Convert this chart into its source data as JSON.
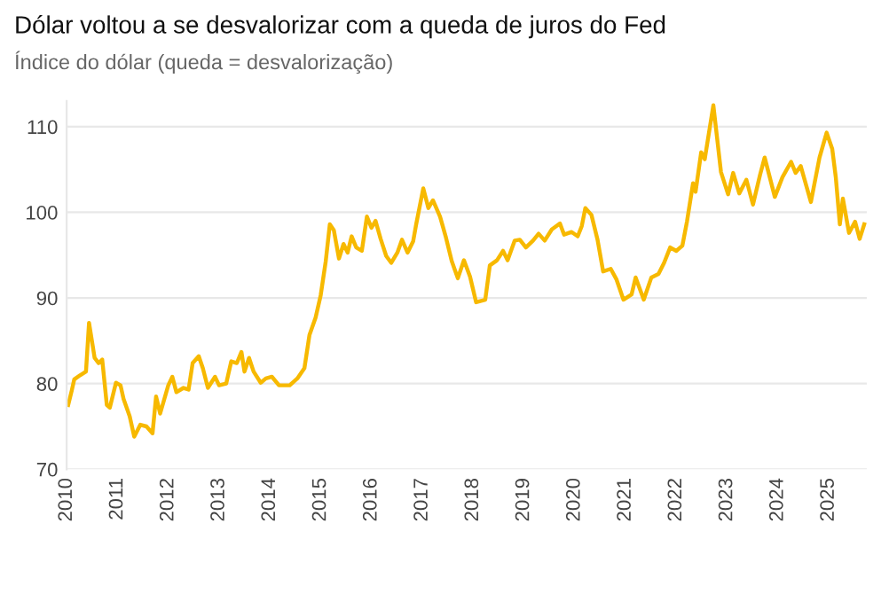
{
  "chart_data": {
    "type": "line",
    "title": "Dólar voltou a se desvalorizar com a queda de juros do Fed",
    "subtitle": "Índice do dólar (queda = desvalorização)",
    "x": [
      2010.03,
      2010.1,
      2010.15,
      2010.27,
      2010.38,
      2010.44,
      2010.55,
      2010.63,
      2010.7,
      2010.79,
      2010.85,
      2010.97,
      2011.06,
      2011.12,
      2011.24,
      2011.33,
      2011.45,
      2011.57,
      2011.69,
      2011.76,
      2011.84,
      2012.0,
      2012.08,
      2012.16,
      2012.3,
      2012.4,
      2012.48,
      2012.6,
      2012.68,
      2012.78,
      2012.92,
      2013.0,
      2013.14,
      2013.24,
      2013.35,
      2013.44,
      2013.5,
      2013.59,
      2013.68,
      2013.82,
      2013.92,
      2014.04,
      2014.18,
      2014.39,
      2014.54,
      2014.68,
      2014.78,
      2014.9,
      2015.0,
      2015.1,
      2015.18,
      2015.26,
      2015.36,
      2015.45,
      2015.53,
      2015.61,
      2015.7,
      2015.81,
      2015.91,
      2016.0,
      2016.08,
      2016.18,
      2016.29,
      2016.39,
      2016.51,
      2016.6,
      2016.71,
      2016.82,
      2016.88,
      2017.02,
      2017.12,
      2017.21,
      2017.35,
      2017.46,
      2017.58,
      2017.7,
      2017.82,
      2017.94,
      2018.06,
      2018.24,
      2018.33,
      2018.47,
      2018.59,
      2018.68,
      2018.82,
      2018.92,
      2019.04,
      2019.18,
      2019.29,
      2019.41,
      2019.55,
      2019.71,
      2019.79,
      2019.94,
      2020.06,
      2020.14,
      2020.21,
      2020.33,
      2020.45,
      2020.56,
      2020.71,
      2020.82,
      2020.96,
      2021.12,
      2021.2,
      2021.36,
      2021.51,
      2021.65,
      2021.76,
      2021.88,
      2022.0,
      2022.12,
      2022.21,
      2022.33,
      2022.38,
      2022.49,
      2022.56,
      2022.73,
      2022.88,
      2023.02,
      2023.12,
      2023.24,
      2023.38,
      2023.51,
      2023.65,
      2023.74,
      2023.94,
      2024.09,
      2024.26,
      2024.35,
      2024.45,
      2024.65,
      2024.82,
      2024.96,
      2025.07,
      2025.14,
      2025.22,
      2025.28,
      2025.4,
      2025.52,
      2025.61,
      2025.7
    ],
    "series": [
      {
        "color": "#f7b900",
        "values": [
          77.5,
          79.2,
          80.5,
          81,
          81.4,
          87.1,
          83,
          82.4,
          82.8,
          77.5,
          77.2,
          80.1,
          79.8,
          78.2,
          76.2,
          73.8,
          75.2,
          75,
          74.2,
          78.5,
          76.5,
          79.8,
          80.8,
          79,
          79.5,
          79.3,
          82.4,
          83.2,
          81.8,
          79.5,
          80.8,
          79.8,
          80,
          82.6,
          82.4,
          83.7,
          81.4,
          83,
          81.4,
          80.1,
          80.6,
          80.8,
          79.8,
          79.8,
          80.6,
          81.8,
          85.7,
          87.7,
          90.3,
          94.3,
          98.6,
          97.9,
          94.6,
          96.3,
          95.3,
          97.2,
          95.9,
          95.5,
          99.5,
          98.2,
          99,
          96.9,
          94.9,
          94.1,
          95.3,
          96.8,
          95.3,
          96.6,
          98.6,
          102.8,
          100.5,
          101.4,
          99.5,
          97.2,
          94.3,
          92.3,
          94.4,
          92.5,
          89.5,
          89.8,
          93.8,
          94.4,
          95.5,
          94.4,
          96.7,
          96.8,
          95.9,
          96.7,
          97.5,
          96.7,
          98,
          98.7,
          97.4,
          97.7,
          97.2,
          98.4,
          100.5,
          99.7,
          96.8,
          93.1,
          93.4,
          92.2,
          89.8,
          90.4,
          92.4,
          89.8,
          92.4,
          92.8,
          94.1,
          95.9,
          95.5,
          96.1,
          98.9,
          103.4,
          102.4,
          107,
          106.2,
          112.5,
          104.7,
          102.1,
          104.6,
          102.2,
          103.8,
          100.9,
          104.4,
          106.4,
          101.8,
          104.1,
          105.9,
          104.6,
          105.4,
          101.2,
          106.4,
          109.3,
          107.4,
          104.1,
          98.6,
          101.6,
          97.6,
          98.9,
          96.9,
          98.6
        ]
      }
    ],
    "xlim": [
      2010,
      2025.75
    ],
    "xticks": [
      2010,
      2011,
      2012,
      2013,
      2014,
      2015,
      2016,
      2017,
      2018,
      2019,
      2020,
      2021,
      2022,
      2023,
      2024,
      2025
    ],
    "ylim": [
      70,
      113
    ],
    "yticks": [
      70,
      80,
      90,
      100,
      110
    ],
    "grid": "y",
    "marker": "none",
    "line_style": "solid"
  }
}
